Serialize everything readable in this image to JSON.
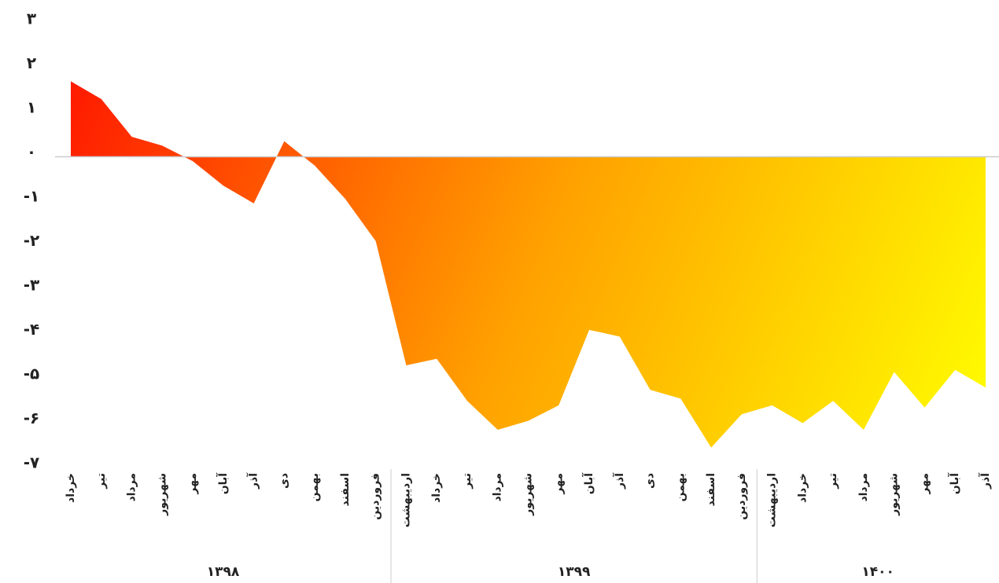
{
  "chart_data": {
    "type": "area",
    "categories": [
      "خرداد",
      "تیر",
      "مرداد",
      "شهریور",
      "مهر",
      "آبان",
      "آذر",
      "دی",
      "بهمن",
      "اسفند",
      "فروردین",
      "اردیبهشت",
      "خرداد",
      "تیر",
      "مرداد",
      "شهریور",
      "مهر",
      "آبان",
      "آذر",
      "دی",
      "بهمن",
      "اسفند",
      "فروردین",
      "اردیبهشت",
      "خرداد",
      "تیر",
      "مرداد",
      "شهریور",
      "مهر",
      "آبان",
      "آذر"
    ],
    "values": [
      1.7,
      1.3,
      0.45,
      0.25,
      -0.1,
      -0.65,
      -1.05,
      0.35,
      -0.2,
      -0.95,
      -1.9,
      -4.7,
      -4.55,
      -5.5,
      -6.15,
      -5.95,
      -5.6,
      -3.9,
      -4.05,
      -5.25,
      -5.45,
      -6.55,
      -5.8,
      -5.6,
      -6.0,
      -5.5,
      -6.15,
      -4.85,
      -5.65,
      -4.8,
      -5.2
    ],
    "groups": [
      {
        "label": "۱۳۹۸",
        "count": 11
      },
      {
        "label": "۱۳۹۹",
        "count": 12
      },
      {
        "label": "۱۴۰۰",
        "count": 8
      }
    ],
    "gradient": [
      "#ff1a00",
      "#ffa000",
      "#ffff00"
    ],
    "ylim": [
      -7,
      3
    ],
    "yticks": [
      {
        "value": 3,
        "label": "۳"
      },
      {
        "value": 2,
        "label": "۲"
      },
      {
        "value": 1,
        "label": "۱"
      },
      {
        "value": 0,
        "label": "۰"
      },
      {
        "value": -1,
        "label": "-۱"
      },
      {
        "value": -2,
        "label": "-۲"
      },
      {
        "value": -3,
        "label": "-۳"
      },
      {
        "value": -4,
        "label": "-۴"
      },
      {
        "value": -5,
        "label": "-۵"
      },
      {
        "value": -6,
        "label": "-۶"
      },
      {
        "value": -7,
        "label": "-۷"
      }
    ]
  }
}
